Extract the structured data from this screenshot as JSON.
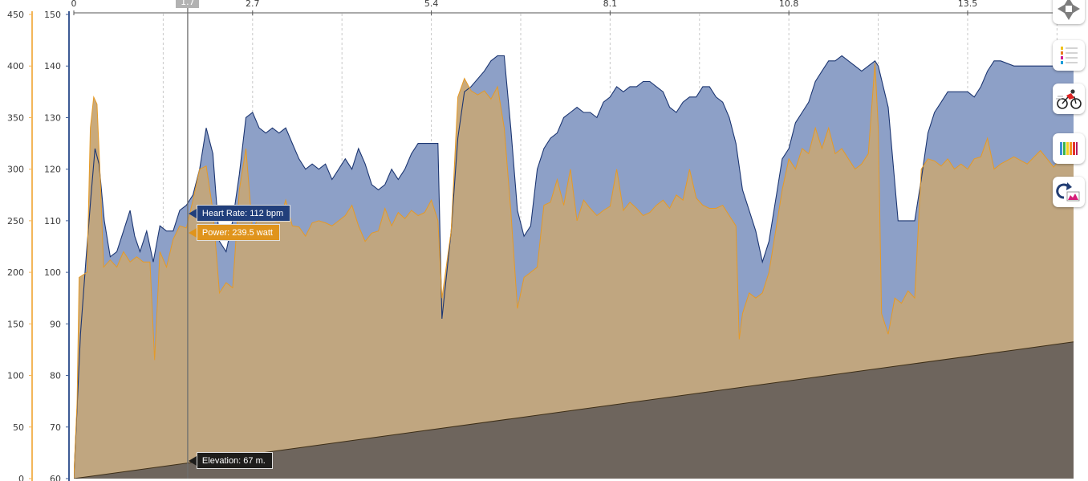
{
  "chart_data": {
    "type": "area",
    "x_axis": {
      "ticks": [
        "0",
        "2.7",
        "5.4",
        "8.1",
        "10.8",
        "13.5"
      ],
      "range": [
        0,
        15.1
      ]
    },
    "y_axis_left_power": {
      "ticks": [
        "0",
        "50",
        "100",
        "150",
        "200",
        "250",
        "300",
        "350",
        "400",
        "450"
      ],
      "range": [
        0,
        450
      ]
    },
    "y_axis_right_hr": {
      "ticks": [
        "60",
        "70",
        "80",
        "90",
        "100",
        "110",
        "120",
        "130",
        "140",
        "150"
      ],
      "range": [
        60,
        150
      ]
    },
    "series": [
      {
        "role": "heart-rate",
        "color": "#8da0c7",
        "stroke": "#1c3672",
        "points": [
          [
            0.0,
            60
          ],
          [
            0.1,
            88
          ],
          [
            0.18,
            102
          ],
          [
            0.26,
            115
          ],
          [
            0.32,
            124
          ],
          [
            0.38,
            121
          ],
          [
            0.46,
            110
          ],
          [
            0.55,
            103
          ],
          [
            0.65,
            104
          ],
          [
            0.75,
            108
          ],
          [
            0.85,
            112
          ],
          [
            0.92,
            107
          ],
          [
            1.0,
            104
          ],
          [
            1.1,
            108
          ],
          [
            1.2,
            102
          ],
          [
            1.3,
            109
          ],
          [
            1.4,
            108
          ],
          [
            1.5,
            108
          ],
          [
            1.6,
            112
          ],
          [
            1.7,
            113
          ],
          [
            1.8,
            115
          ],
          [
            1.9,
            120
          ],
          [
            2.0,
            128
          ],
          [
            2.1,
            123
          ],
          [
            2.2,
            106
          ],
          [
            2.3,
            104
          ],
          [
            2.4,
            110
          ],
          [
            2.5,
            119
          ],
          [
            2.6,
            130
          ],
          [
            2.7,
            131
          ],
          [
            2.8,
            128
          ],
          [
            2.9,
            127
          ],
          [
            3.0,
            128
          ],
          [
            3.1,
            127
          ],
          [
            3.2,
            128
          ],
          [
            3.3,
            125
          ],
          [
            3.4,
            122
          ],
          [
            3.5,
            120
          ],
          [
            3.6,
            121
          ],
          [
            3.7,
            120
          ],
          [
            3.8,
            121
          ],
          [
            3.9,
            118
          ],
          [
            4.0,
            120
          ],
          [
            4.1,
            122
          ],
          [
            4.2,
            120
          ],
          [
            4.3,
            124
          ],
          [
            4.4,
            121
          ],
          [
            4.5,
            117
          ],
          [
            4.6,
            116
          ],
          [
            4.7,
            117
          ],
          [
            4.8,
            120
          ],
          [
            4.9,
            118
          ],
          [
            5.0,
            120
          ],
          [
            5.1,
            123
          ],
          [
            5.2,
            125
          ],
          [
            5.3,
            125
          ],
          [
            5.4,
            125
          ],
          [
            5.5,
            125
          ],
          [
            5.56,
            91
          ],
          [
            5.7,
            108
          ],
          [
            5.8,
            126
          ],
          [
            5.9,
            135
          ],
          [
            6.0,
            136
          ],
          [
            6.2,
            139
          ],
          [
            6.3,
            141
          ],
          [
            6.4,
            142
          ],
          [
            6.5,
            142
          ],
          [
            6.6,
            128
          ],
          [
            6.7,
            112
          ],
          [
            6.8,
            107
          ],
          [
            6.9,
            109
          ],
          [
            7.0,
            120
          ],
          [
            7.1,
            124
          ],
          [
            7.2,
            126
          ],
          [
            7.3,
            127
          ],
          [
            7.4,
            130
          ],
          [
            7.5,
            131
          ],
          [
            7.6,
            132
          ],
          [
            7.7,
            131
          ],
          [
            7.8,
            131
          ],
          [
            7.9,
            130
          ],
          [
            8.0,
            133
          ],
          [
            8.1,
            134
          ],
          [
            8.2,
            136
          ],
          [
            8.3,
            135
          ],
          [
            8.4,
            136
          ],
          [
            8.5,
            136
          ],
          [
            8.6,
            137
          ],
          [
            8.7,
            137
          ],
          [
            8.8,
            136
          ],
          [
            8.9,
            135
          ],
          [
            9.0,
            132
          ],
          [
            9.1,
            131
          ],
          [
            9.2,
            133
          ],
          [
            9.3,
            134
          ],
          [
            9.4,
            134
          ],
          [
            9.5,
            136
          ],
          [
            9.6,
            136
          ],
          [
            9.7,
            134
          ],
          [
            9.8,
            133
          ],
          [
            9.9,
            130
          ],
          [
            10.0,
            125
          ],
          [
            10.1,
            116
          ],
          [
            10.2,
            112
          ],
          [
            10.3,
            108
          ],
          [
            10.4,
            102
          ],
          [
            10.5,
            106
          ],
          [
            10.6,
            114
          ],
          [
            10.7,
            122
          ],
          [
            10.8,
            124
          ],
          [
            10.9,
            129
          ],
          [
            11.0,
            131
          ],
          [
            11.1,
            133
          ],
          [
            11.2,
            137
          ],
          [
            11.3,
            139
          ],
          [
            11.4,
            141
          ],
          [
            11.5,
            141
          ],
          [
            11.6,
            142
          ],
          [
            11.7,
            141
          ],
          [
            11.8,
            140
          ],
          [
            11.9,
            139
          ],
          [
            12.0,
            140
          ],
          [
            12.1,
            141
          ],
          [
            12.15,
            140
          ],
          [
            12.3,
            132
          ],
          [
            12.45,
            110
          ],
          [
            12.55,
            110
          ],
          [
            12.7,
            110
          ],
          [
            12.8,
            118
          ],
          [
            12.9,
            127
          ],
          [
            13.0,
            131
          ],
          [
            13.1,
            133
          ],
          [
            13.2,
            135
          ],
          [
            13.3,
            135
          ],
          [
            13.4,
            135
          ],
          [
            13.5,
            135
          ],
          [
            13.6,
            134
          ],
          [
            13.7,
            136
          ],
          [
            13.8,
            139
          ],
          [
            13.9,
            141
          ],
          [
            14.0,
            141
          ],
          [
            14.2,
            140
          ],
          [
            14.4,
            140
          ],
          [
            14.6,
            140
          ],
          [
            14.8,
            140
          ],
          [
            15.0,
            141
          ],
          [
            15.1,
            141
          ]
        ]
      },
      {
        "role": "power",
        "color": "#c4a67a",
        "fill_light": "#fbd795",
        "stroke": "#e59a27",
        "points": [
          [
            0.0,
            0
          ],
          [
            0.05,
            75
          ],
          [
            0.08,
            195
          ],
          [
            0.2,
            200
          ],
          [
            0.25,
            340
          ],
          [
            0.3,
            370
          ],
          [
            0.35,
            363
          ],
          [
            0.4,
            290
          ],
          [
            0.45,
            205
          ],
          [
            0.55,
            212
          ],
          [
            0.65,
            205
          ],
          [
            0.75,
            220
          ],
          [
            0.85,
            210
          ],
          [
            0.95,
            215
          ],
          [
            1.05,
            210
          ],
          [
            1.15,
            210
          ],
          [
            1.22,
            115
          ],
          [
            1.3,
            220
          ],
          [
            1.4,
            205
          ],
          [
            1.5,
            232
          ],
          [
            1.6,
            245
          ],
          [
            1.7,
            243
          ],
          [
            1.8,
            270
          ],
          [
            1.9,
            300
          ],
          [
            2.0,
            303
          ],
          [
            2.1,
            260
          ],
          [
            2.2,
            180
          ],
          [
            2.3,
            190
          ],
          [
            2.4,
            185
          ],
          [
            2.5,
            280
          ],
          [
            2.6,
            320
          ],
          [
            2.7,
            240
          ],
          [
            2.8,
            255
          ],
          [
            2.9,
            258
          ],
          [
            3.0,
            250
          ],
          [
            3.1,
            248
          ],
          [
            3.2,
            270
          ],
          [
            3.3,
            245
          ],
          [
            3.4,
            244
          ],
          [
            3.5,
            235
          ],
          [
            3.6,
            248
          ],
          [
            3.7,
            250
          ],
          [
            3.8,
            248
          ],
          [
            3.9,
            245
          ],
          [
            4.0,
            250
          ],
          [
            4.1,
            255
          ],
          [
            4.2,
            265
          ],
          [
            4.3,
            245
          ],
          [
            4.4,
            230
          ],
          [
            4.5,
            238
          ],
          [
            4.6,
            240
          ],
          [
            4.7,
            262
          ],
          [
            4.8,
            245
          ],
          [
            4.9,
            258
          ],
          [
            5.0,
            252
          ],
          [
            5.1,
            260
          ],
          [
            5.2,
            255
          ],
          [
            5.3,
            258
          ],
          [
            5.4,
            270
          ],
          [
            5.5,
            250
          ],
          [
            5.56,
            175
          ],
          [
            5.7,
            240
          ],
          [
            5.8,
            370
          ],
          [
            5.9,
            388
          ],
          [
            6.0,
            376
          ],
          [
            6.1,
            372
          ],
          [
            6.2,
            376
          ],
          [
            6.3,
            368
          ],
          [
            6.4,
            380
          ],
          [
            6.5,
            340
          ],
          [
            6.6,
            260
          ],
          [
            6.7,
            165
          ],
          [
            6.8,
            195
          ],
          [
            6.9,
            200
          ],
          [
            7.0,
            205
          ],
          [
            7.1,
            265
          ],
          [
            7.2,
            268
          ],
          [
            7.3,
            290
          ],
          [
            7.4,
            265
          ],
          [
            7.5,
            300
          ],
          [
            7.6,
            250
          ],
          [
            7.7,
            270
          ],
          [
            7.8,
            262
          ],
          [
            7.9,
            255
          ],
          [
            8.0,
            260
          ],
          [
            8.1,
            264
          ],
          [
            8.2,
            300
          ],
          [
            8.3,
            260
          ],
          [
            8.4,
            268
          ],
          [
            8.5,
            262
          ],
          [
            8.6,
            255
          ],
          [
            8.7,
            258
          ],
          [
            8.8,
            265
          ],
          [
            8.9,
            270
          ],
          [
            9.0,
            262
          ],
          [
            9.1,
            275
          ],
          [
            9.2,
            270
          ],
          [
            9.3,
            300
          ],
          [
            9.4,
            272
          ],
          [
            9.5,
            265
          ],
          [
            9.6,
            262
          ],
          [
            9.7,
            262
          ],
          [
            9.8,
            265
          ],
          [
            9.9,
            255
          ],
          [
            10.0,
            245
          ],
          [
            10.05,
            135
          ],
          [
            10.1,
            160
          ],
          [
            10.2,
            180
          ],
          [
            10.3,
            175
          ],
          [
            10.4,
            180
          ],
          [
            10.5,
            200
          ],
          [
            10.6,
            240
          ],
          [
            10.7,
            280
          ],
          [
            10.8,
            310
          ],
          [
            10.9,
            300
          ],
          [
            11.0,
            320
          ],
          [
            11.1,
            315
          ],
          [
            11.2,
            340
          ],
          [
            11.3,
            320
          ],
          [
            11.4,
            340
          ],
          [
            11.5,
            315
          ],
          [
            11.6,
            320
          ],
          [
            11.7,
            310
          ],
          [
            11.8,
            300
          ],
          [
            11.9,
            305
          ],
          [
            12.0,
            315
          ],
          [
            12.1,
            403
          ],
          [
            12.15,
            340
          ],
          [
            12.2,
            160
          ],
          [
            12.3,
            140
          ],
          [
            12.4,
            175
          ],
          [
            12.5,
            170
          ],
          [
            12.6,
            182
          ],
          [
            12.7,
            175
          ],
          [
            12.8,
            300
          ],
          [
            12.9,
            310
          ],
          [
            13.0,
            308
          ],
          [
            13.1,
            303
          ],
          [
            13.2,
            310
          ],
          [
            13.3,
            300
          ],
          [
            13.4,
            305
          ],
          [
            13.5,
            300
          ],
          [
            13.6,
            310
          ],
          [
            13.7,
            312
          ],
          [
            13.8,
            330
          ],
          [
            13.9,
            300
          ],
          [
            14.0,
            305
          ],
          [
            14.2,
            312
          ],
          [
            14.4,
            305
          ],
          [
            14.6,
            318
          ],
          [
            14.8,
            302
          ],
          [
            15.0,
            318
          ],
          [
            15.1,
            318
          ]
        ]
      },
      {
        "role": "elevation",
        "color": "#9a7e52",
        "stroke": "#3d2e17",
        "points": [
          [
            0.0,
            60
          ],
          [
            15.1,
            86.5
          ]
        ]
      }
    ],
    "cursor": {
      "x_label": "1.7",
      "x_value": 1.72
    },
    "tooltips": {
      "heart_rate": "Heart Rate: 112 bpm",
      "power": "Power: 239.5 watt",
      "elevation": "Elevation: 67 m."
    }
  },
  "toolbar": {
    "buttons": [
      {
        "name": "pan-button",
        "icon": "pan-arrows-icon"
      },
      {
        "name": "legend-button",
        "icon": "legend-list-icon"
      },
      {
        "name": "activity-button",
        "icon": "cyclist-icon"
      },
      {
        "name": "color-zones-button",
        "icon": "color-bars-icon"
      },
      {
        "name": "reset-zoom-button",
        "icon": "undo-chart-icon"
      }
    ]
  }
}
